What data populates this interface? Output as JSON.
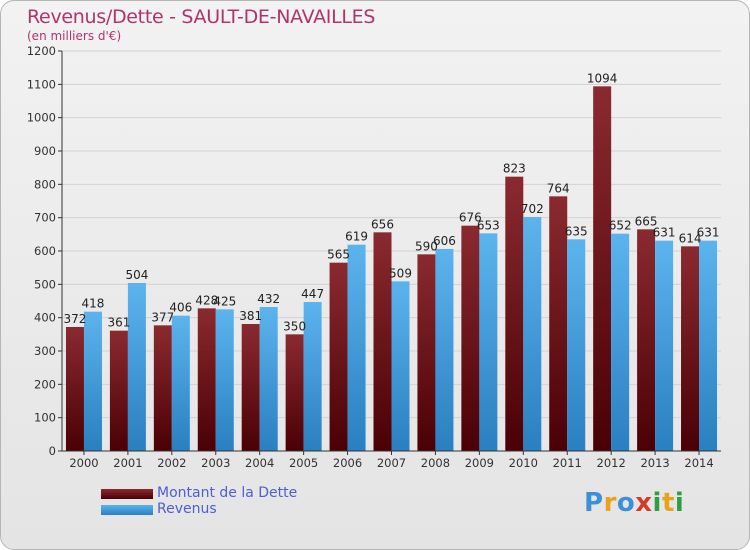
{
  "title": "Revenus/Dette - SAULT-DE-NAVAILLES",
  "subtitle": "(en milliers d'€)",
  "logo": {
    "letters": [
      "P",
      "r",
      "o",
      "x",
      "i",
      "t",
      "i"
    ],
    "colors": [
      "#3d8fd6",
      "#e8a21b",
      "#3d8fd6",
      "#d43a2a",
      "#2f9e3e",
      "#e8a21b",
      "#2f9e3e"
    ]
  },
  "colors": {
    "dette": "#7b1c24",
    "revenus": "#4aa3e3",
    "title": "#b0346b",
    "legend_text": "#4b5fd0"
  },
  "chart_data": {
    "type": "bar",
    "title": "Revenus/Dette - SAULT-DE-NAVAILLES",
    "subtitle": "(en milliers d'€)",
    "categories": [
      "2000",
      "2001",
      "2002",
      "2003",
      "2004",
      "2005",
      "2006",
      "2007",
      "2008",
      "2009",
      "2010",
      "2011",
      "2012",
      "2013",
      "2014"
    ],
    "series": [
      {
        "name": "Montant de la Dette",
        "values": [
          372,
          361,
          377,
          428,
          381,
          350,
          565,
          656,
          590,
          676,
          823,
          764,
          1094,
          665,
          614
        ]
      },
      {
        "name": "Revenus",
        "values": [
          418,
          504,
          406,
          425,
          432,
          447,
          619,
          509,
          606,
          653,
          702,
          635,
          652,
          631,
          631
        ]
      }
    ],
    "ylim": [
      0,
      1200
    ],
    "yticks": [
      0,
      100,
      200,
      300,
      400,
      500,
      600,
      700,
      800,
      900,
      1000,
      1100,
      1200
    ],
    "grid": true,
    "legend": "bottom-left"
  }
}
